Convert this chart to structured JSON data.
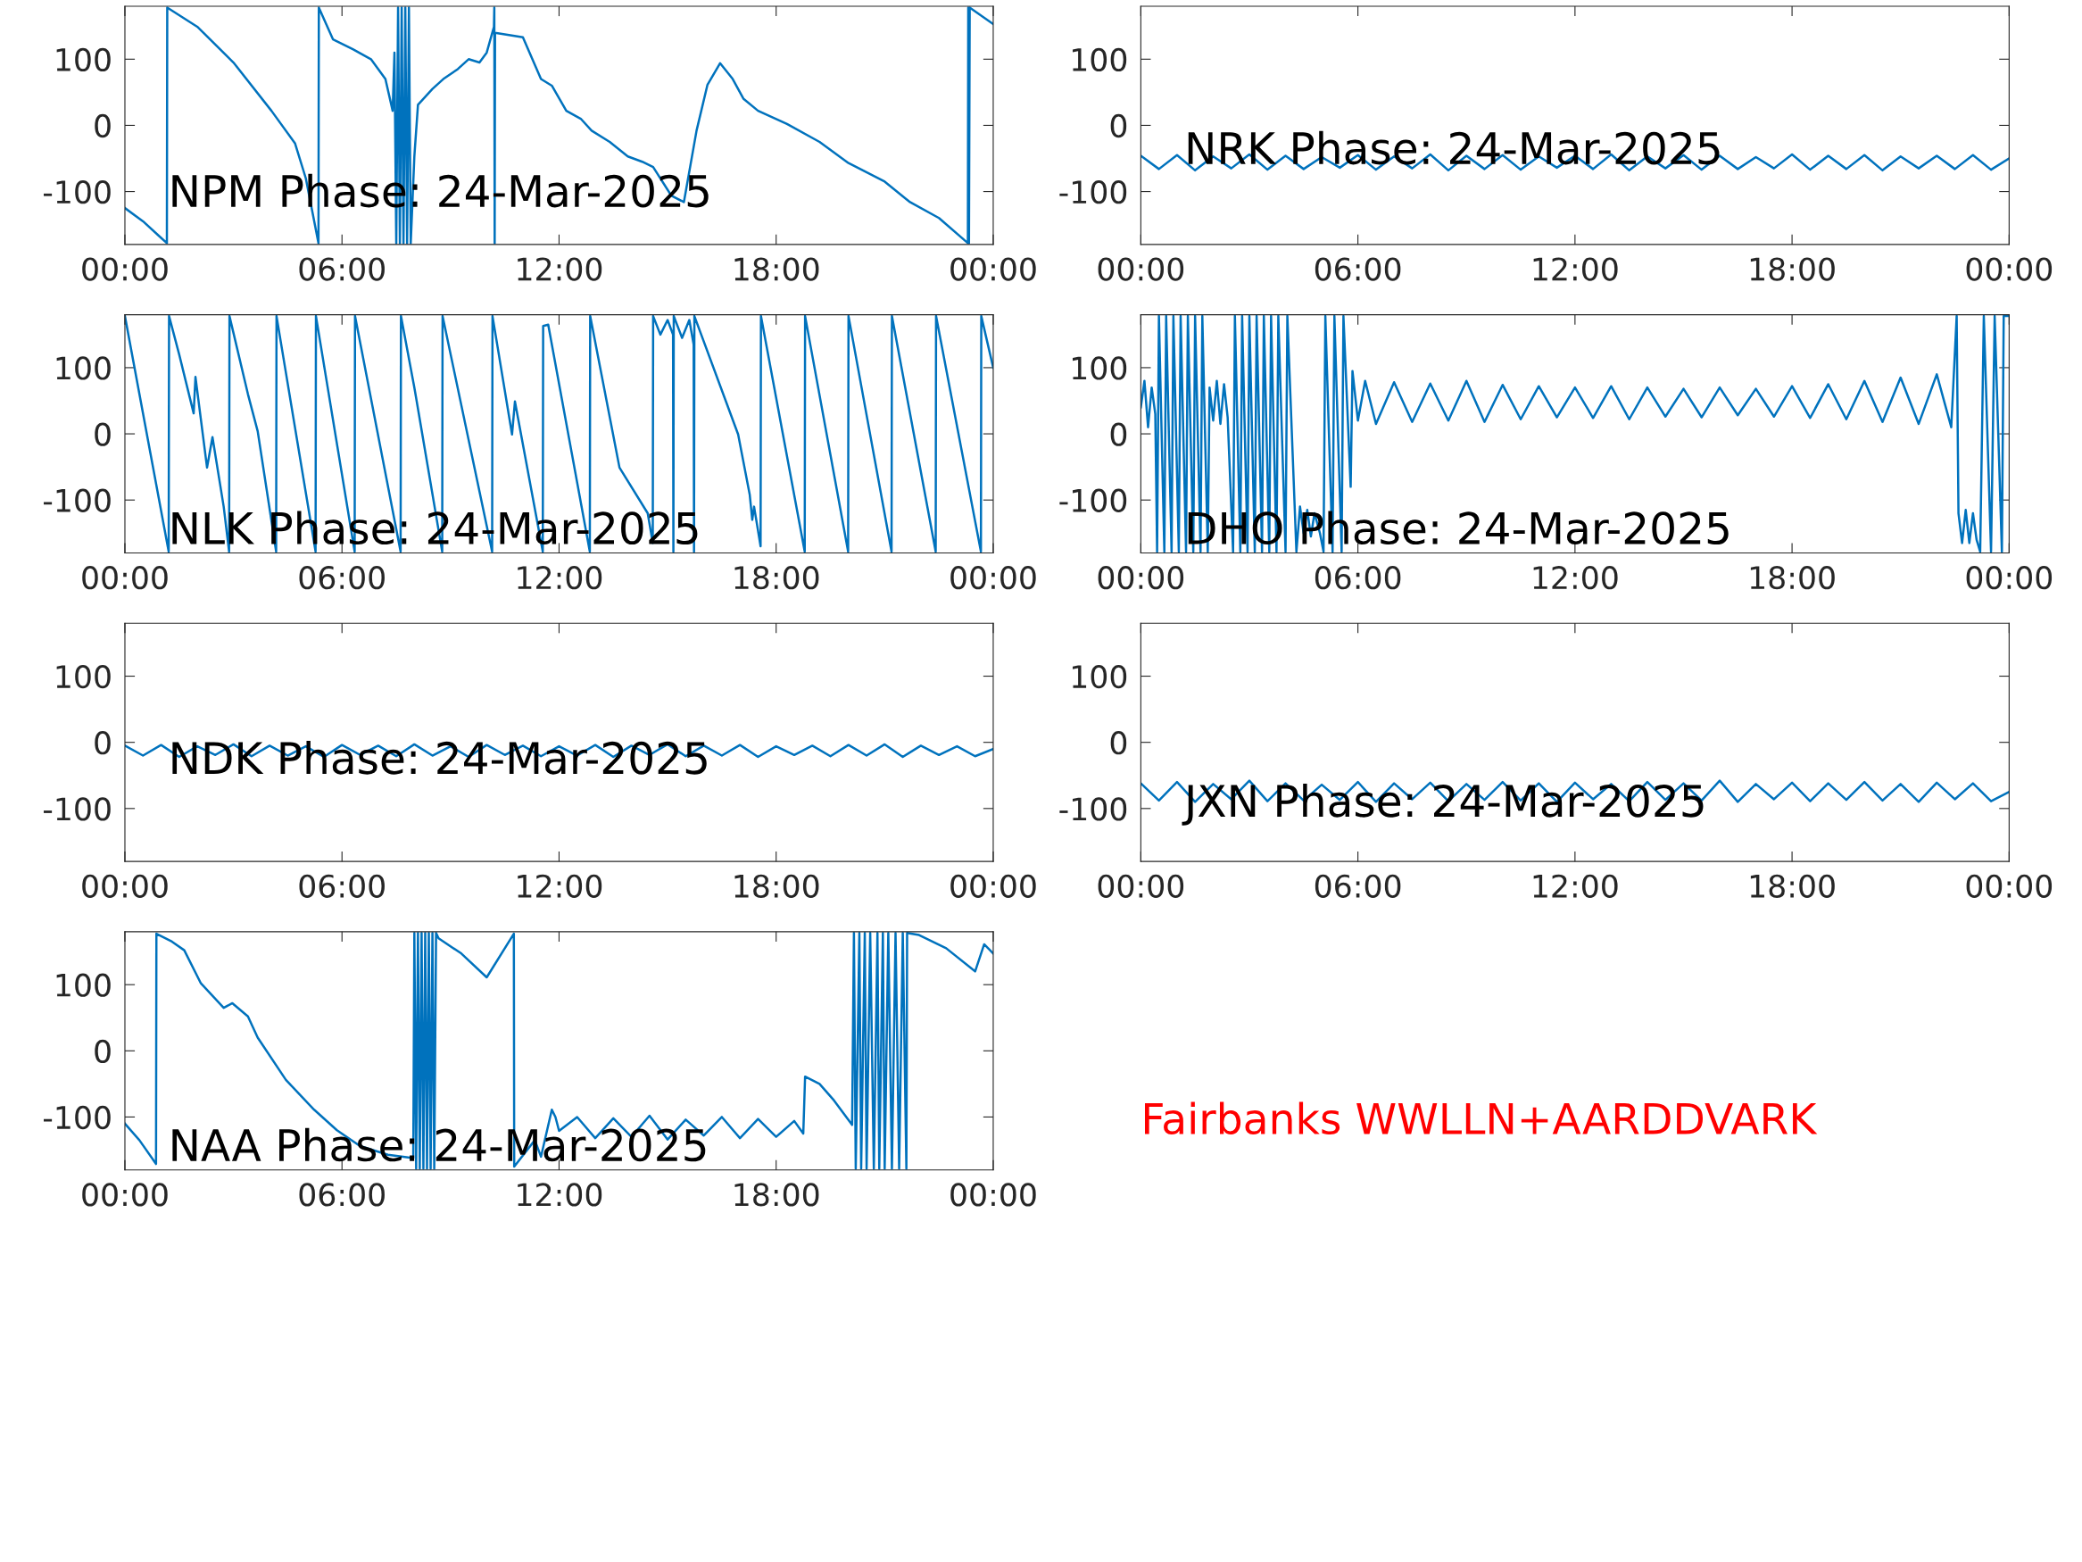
{
  "chart_data": [
    {
      "type": "line",
      "annotations": [
        "NPM Phase: 24-Mar-2025"
      ],
      "xlim": [
        0,
        24
      ],
      "ylim": [
        -180,
        180
      ],
      "xticks": [
        {
          "value": 0,
          "label": "00:00"
        },
        {
          "value": 6,
          "label": "06:00"
        },
        {
          "value": 12,
          "label": "12:00"
        },
        {
          "value": 18,
          "label": "18:00"
        },
        {
          "value": 24,
          "label": "00:00"
        }
      ],
      "yticks": [
        -100,
        0,
        100
      ],
      "grid": false,
      "series": [
        {
          "color": "#0072bd",
          "x": [
            0,
            0.5,
            1.0,
            1.16,
            1.17,
            2.0,
            3.0,
            4.05,
            4.7,
            5.0,
            5.35,
            5.36,
            5.75,
            6.3,
            6.8,
            7.2,
            7.4,
            7.45,
            7.5,
            7.55,
            7.6,
            7.65,
            7.7,
            7.75,
            7.8,
            7.85,
            7.9,
            8.0,
            8.1,
            8.5,
            8.8,
            9.2,
            9.5,
            9.8,
            10.0,
            10.2,
            10.21,
            10.22,
            10.23,
            11.0,
            11.5,
            11.8,
            12.2,
            12.6,
            12.9,
            13.4,
            13.9,
            14.3,
            14.6,
            15.1,
            15.45,
            15.8,
            16.1,
            16.45,
            16.8,
            17.1,
            17.5,
            18.3,
            19.2,
            20.0,
            21.0,
            21.7,
            22.5,
            23.3,
            23.31,
            23.33,
            23.35,
            24.0
          ],
          "values": [
            -125,
            -145,
            -170,
            -178,
            178,
            149,
            95,
            22,
            -27,
            -80,
            -178,
            178,
            130,
            115,
            100,
            70,
            22,
            110,
            -178,
            178,
            -178,
            178,
            -178,
            178,
            -178,
            178,
            -178,
            -47,
            31,
            55,
            70,
            85,
            100,
            95,
            110,
            149,
            178,
            -178,
            140,
            133,
            70,
            60,
            22,
            10,
            -8,
            -25,
            -47,
            -55,
            -63,
            -106,
            -116,
            -8,
            61,
            94,
            70,
            40,
            22,
            2,
            -25,
            -57,
            -85,
            -116,
            -140,
            -178,
            178,
            -178,
            178,
            153
          ]
        }
      ]
    },
    {
      "type": "line",
      "annotations": [
        "NRK Phase: 24-Mar-2025"
      ],
      "xlim": [
        0,
        24
      ],
      "ylim": [
        -180,
        180
      ],
      "xticks": [
        {
          "value": 0,
          "label": "00:00"
        },
        {
          "value": 6,
          "label": "06:00"
        },
        {
          "value": 12,
          "label": "12:00"
        },
        {
          "value": 18,
          "label": "18:00"
        },
        {
          "value": 24,
          "label": "00:00"
        }
      ],
      "yticks": [
        -100,
        0,
        100
      ],
      "grid": false,
      "series": [
        {
          "color": "#0072bd",
          "x": [
            0,
            0.5,
            1,
            1.5,
            2,
            2.5,
            3,
            3.5,
            4,
            4.5,
            5,
            5.5,
            6,
            6.5,
            7,
            7.5,
            8,
            8.5,
            9,
            9.5,
            10,
            10.5,
            11,
            11.5,
            12,
            12.5,
            13,
            13.5,
            14,
            14.5,
            15,
            15.5,
            16,
            16.5,
            17,
            17.5,
            18,
            18.5,
            19,
            19.5,
            20,
            20.5,
            21,
            21.5,
            22,
            22.5,
            23,
            23.5,
            24
          ],
          "values": [
            -46,
            -66,
            -45,
            -68,
            -47,
            -65,
            -44,
            -67,
            -46,
            -66,
            -48,
            -64,
            -45,
            -67,
            -47,
            -65,
            -44,
            -68,
            -46,
            -66,
            -45,
            -67,
            -47,
            -64,
            -46,
            -66,
            -44,
            -68,
            -47,
            -65,
            -45,
            -67,
            -46,
            -66,
            -48,
            -65,
            -44,
            -67,
            -46,
            -66,
            -45,
            -68,
            -47,
            -65,
            -46,
            -66,
            -45,
            -67,
            -50
          ]
        }
      ]
    },
    {
      "type": "line",
      "annotations": [
        "NLK Phase: 24-Mar-2025"
      ],
      "xlim": [
        0,
        24
      ],
      "ylim": [
        -180,
        180
      ],
      "xticks": [
        {
          "value": 0,
          "label": "00:00"
        },
        {
          "value": 6,
          "label": "06:00"
        },
        {
          "value": 12,
          "label": "12:00"
        },
        {
          "value": 18,
          "label": "18:00"
        },
        {
          "value": 24,
          "label": "00:00"
        }
      ],
      "yticks": [
        -100,
        0,
        100
      ],
      "grid": false,
      "series": [
        {
          "color": "#0072bd",
          "x": [
            0,
            1.21,
            1.22,
            1.5,
            1.9,
            1.95,
            2.27,
            2.42,
            2.73,
            2.88,
            2.89,
            3.4,
            3.67,
            4.18,
            4.19,
            5.27,
            5.28,
            6.35,
            6.36,
            7.62,
            7.63,
            8.0,
            8.05,
            8.77,
            8.78,
            10.15,
            10.16,
            10.7,
            10.78,
            11.55,
            11.56,
            11.7,
            12.85,
            12.86,
            13.67,
            14.45,
            14.59,
            14.6,
            14.8,
            15.0,
            15.15,
            15.16,
            15.17,
            15.4,
            15.6,
            15.72,
            15.73,
            15.74,
            16.64,
            16.95,
            17.27,
            17.34,
            17.39,
            17.57,
            17.58,
            18.79,
            18.8,
            19.99,
            20.0,
            21.19,
            21.2,
            22.41,
            22.42,
            23.66,
            23.67,
            24.0
          ],
          "values": [
            178,
            -178,
            178,
            120,
            31,
            86,
            -51,
            -5,
            -110,
            -178,
            178,
            60,
            4,
            -178,
            178,
            -178,
            178,
            -178,
            178,
            -178,
            178,
            70,
            54,
            -178,
            178,
            -178,
            178,
            -1,
            49,
            -178,
            163,
            165,
            -178,
            178,
            -51,
            -120,
            -165,
            178,
            150,
            172,
            150,
            -178,
            178,
            145,
            172,
            135,
            -178,
            178,
            45,
            -1,
            -92,
            -130,
            -110,
            -170,
            178,
            -178,
            178,
            -178,
            178,
            -178,
            178,
            -178,
            178,
            -178,
            178,
            100
          ]
        }
      ]
    },
    {
      "type": "line",
      "annotations": [
        "DHO Phase: 24-Mar-2025"
      ],
      "xlim": [
        0,
        24
      ],
      "ylim": [
        -180,
        180
      ],
      "xticks": [
        {
          "value": 0,
          "label": "00:00"
        },
        {
          "value": 6,
          "label": "06:00"
        },
        {
          "value": 12,
          "label": "12:00"
        },
        {
          "value": 18,
          "label": "18:00"
        },
        {
          "value": 24,
          "label": "00:00"
        }
      ],
      "yticks": [
        -100,
        0,
        100
      ],
      "grid": false,
      "series": [
        {
          "color": "#0072bd",
          "x": [
            0,
            0.1,
            0.2,
            0.3,
            0.4,
            0.45,
            0.5,
            0.65,
            0.7,
            0.85,
            0.9,
            1.05,
            1.1,
            1.25,
            1.3,
            1.45,
            1.5,
            1.65,
            1.7,
            1.85,
            1.9,
            2.0,
            2.1,
            2.2,
            2.3,
            2.4,
            2.55,
            2.6,
            2.75,
            2.8,
            2.95,
            3.0,
            3.15,
            3.2,
            3.35,
            3.4,
            3.55,
            3.6,
            3.75,
            3.8,
            4.0,
            4.05,
            4.3,
            4.4,
            4.5,
            4.6,
            4.7,
            4.8,
            4.95,
            5.05,
            5.1,
            5.3,
            5.35,
            5.55,
            5.6,
            5.8,
            5.85,
            6.0,
            6.2,
            6.5,
            7.0,
            7.5,
            8.0,
            8.5,
            9.0,
            9.5,
            10.0,
            10.5,
            11.0,
            11.5,
            12.0,
            12.5,
            13.0,
            13.5,
            14.0,
            14.5,
            15.0,
            15.5,
            16.0,
            16.5,
            17.0,
            17.5,
            18.0,
            18.5,
            19.0,
            19.5,
            20.0,
            20.5,
            21.0,
            21.5,
            22.0,
            22.4,
            22.55,
            22.6,
            22.7,
            22.8,
            22.9,
            23.0,
            23.1,
            23.2,
            23.3,
            23.5,
            23.6,
            23.8,
            23.85,
            24.0
          ],
          "values": [
            40,
            80,
            10,
            70,
            30,
            -178,
            178,
            -178,
            178,
            -178,
            178,
            -178,
            178,
            -178,
            178,
            -178,
            178,
            -178,
            178,
            -178,
            70,
            20,
            80,
            15,
            75,
            25,
            -178,
            178,
            -178,
            178,
            -178,
            178,
            -178,
            178,
            -178,
            178,
            -178,
            178,
            -178,
            178,
            -178,
            178,
            -178,
            -110,
            -150,
            -115,
            -155,
            -120,
            -150,
            -178,
            178,
            -178,
            178,
            -178,
            178,
            -80,
            95,
            20,
            80,
            15,
            78,
            18,
            76,
            20,
            80,
            18,
            74,
            22,
            72,
            25,
            70,
            24,
            72,
            22,
            70,
            26,
            68,
            25,
            70,
            28,
            68,
            26,
            72,
            24,
            75,
            22,
            80,
            18,
            85,
            15,
            90,
            10,
            178,
            -120,
            -165,
            -115,
            -165,
            -120,
            -160,
            -178,
            178,
            -178,
            178,
            -178,
            178,
            178
          ]
        }
      ]
    },
    {
      "type": "line",
      "annotations": [
        "NDK Phase: 24-Mar-2025"
      ],
      "xlim": [
        0,
        24
      ],
      "ylim": [
        -180,
        180
      ],
      "xticks": [
        {
          "value": 0,
          "label": "00:00"
        },
        {
          "value": 6,
          "label": "06:00"
        },
        {
          "value": 12,
          "label": "12:00"
        },
        {
          "value": 18,
          "label": "18:00"
        },
        {
          "value": 24,
          "label": "00:00"
        }
      ],
      "yticks": [
        -100,
        0,
        100
      ],
      "grid": false,
      "series": [
        {
          "color": "#0072bd",
          "x": [
            0,
            0.5,
            1,
            1.5,
            2,
            2.5,
            3,
            3.5,
            4,
            4.5,
            5,
            5.5,
            6,
            6.5,
            7,
            7.5,
            8,
            8.5,
            9,
            9.5,
            10,
            10.5,
            11,
            11.5,
            12,
            12.5,
            13,
            13.5,
            14,
            14.5,
            15,
            15.5,
            16,
            16.5,
            17,
            17.5,
            18,
            18.5,
            19,
            19.5,
            20,
            20.5,
            21,
            21.5,
            22,
            22.5,
            23,
            23.5,
            24
          ],
          "values": [
            -5,
            -20,
            -4,
            -22,
            -6,
            -19,
            -3,
            -21,
            -5,
            -20,
            -6,
            -22,
            -4,
            -19,
            -5,
            -21,
            -3,
            -20,
            -6,
            -22,
            -4,
            -19,
            -5,
            -21,
            -6,
            -20,
            -4,
            -22,
            -5,
            -19,
            -3,
            -21,
            -5,
            -20,
            -4,
            -22,
            -6,
            -19,
            -5,
            -21,
            -4,
            -20,
            -3,
            -22,
            -5,
            -19,
            -6,
            -21,
            -10
          ]
        }
      ]
    },
    {
      "type": "line",
      "annotations": [
        "JXN Phase: 24-Mar-2025"
      ],
      "xlim": [
        0,
        24
      ],
      "ylim": [
        -180,
        180
      ],
      "xticks": [
        {
          "value": 0,
          "label": "00:00"
        },
        {
          "value": 6,
          "label": "06:00"
        },
        {
          "value": 12,
          "label": "12:00"
        },
        {
          "value": 18,
          "label": "18:00"
        },
        {
          "value": 24,
          "label": "00:00"
        }
      ],
      "yticks": [
        -100,
        0,
        100
      ],
      "grid": false,
      "series": [
        {
          "color": "#0072bd",
          "x": [
            0,
            0.5,
            1,
            1.5,
            2,
            2.5,
            3,
            3.5,
            4,
            4.5,
            5,
            5.5,
            6,
            6.5,
            7,
            7.5,
            8,
            8.5,
            9,
            9.5,
            10,
            10.5,
            11,
            11.5,
            12,
            12.5,
            13,
            13.5,
            14,
            14.5,
            15,
            15.5,
            16,
            16.5,
            17,
            17.5,
            18,
            18.5,
            19,
            19.5,
            20,
            20.5,
            21,
            21.5,
            22,
            22.5,
            23,
            23.5,
            24
          ],
          "values": [
            -62,
            -88,
            -60,
            -90,
            -63,
            -86,
            -58,
            -89,
            -62,
            -88,
            -64,
            -87,
            -60,
            -90,
            -62,
            -86,
            -61,
            -89,
            -63,
            -87,
            -60,
            -88,
            -62,
            -90,
            -61,
            -86,
            -63,
            -89,
            -60,
            -87,
            -62,
            -88,
            -58,
            -90,
            -63,
            -86,
            -61,
            -89,
            -62,
            -87,
            -60,
            -88,
            -63,
            -90,
            -61,
            -86,
            -62,
            -89,
            -75
          ]
        }
      ]
    },
    {
      "type": "line",
      "annotations": [
        "NAA Phase: 24-Mar-2025"
      ],
      "xlim": [
        0,
        24
      ],
      "ylim": [
        -180,
        180
      ],
      "xticks": [
        {
          "value": 0,
          "label": "00:00"
        },
        {
          "value": 6,
          "label": "06:00"
        },
        {
          "value": 12,
          "label": "12:00"
        },
        {
          "value": 18,
          "label": "18:00"
        },
        {
          "value": 24,
          "label": "00:00"
        }
      ],
      "yticks": [
        -100,
        0,
        100
      ],
      "grid": false,
      "series": [
        {
          "color": "#0072bd",
          "x": [
            0,
            0.4,
            0.86,
            0.87,
            1.3,
            1.64,
            2.1,
            2.73,
            2.97,
            3.4,
            3.67,
            4.45,
            5.23,
            5.86,
            6.5,
            7.27,
            7.97,
            8.0,
            8.05,
            8.1,
            8.15,
            8.2,
            8.25,
            8.3,
            8.35,
            8.4,
            8.45,
            8.5,
            8.55,
            8.6,
            8.67,
            9.3,
            10.0,
            10.75,
            10.76,
            11.33,
            11.5,
            11.8,
            11.9,
            12.0,
            12.5,
            13.0,
            13.5,
            14.0,
            14.5,
            15.0,
            15.5,
            16.0,
            16.5,
            17.0,
            17.5,
            18.0,
            18.5,
            18.75,
            18.8,
            19.2,
            19.6,
            20.1,
            20.15,
            20.2,
            20.3,
            20.35,
            20.45,
            20.5,
            20.6,
            20.7,
            20.8,
            20.85,
            20.95,
            21.0,
            21.1,
            21.2,
            21.3,
            21.4,
            21.5,
            21.6,
            21.62,
            21.95,
            22.7,
            23.5,
            23.75,
            24.0
          ],
          "values": [
            -110,
            -135,
            -171,
            177,
            165,
            152,
            102,
            65,
            72,
            52,
            20,
            -44,
            -89,
            -120,
            -144,
            -157,
            -162,
            178,
            -178,
            178,
            -178,
            178,
            -178,
            178,
            -178,
            178,
            -178,
            178,
            -178,
            178,
            170,
            147,
            111,
            177,
            -175,
            -135,
            -160,
            -89,
            -100,
            -121,
            -100,
            -132,
            -102,
            -130,
            -98,
            -134,
            -104,
            -128,
            -100,
            -132,
            -103,
            -130,
            -106,
            -125,
            -39,
            -50,
            -75,
            -112,
            178,
            -178,
            178,
            -178,
            178,
            -178,
            178,
            -178,
            178,
            -178,
            178,
            -178,
            178,
            -178,
            178,
            -178,
            178,
            -178,
            178,
            175,
            155,
            120,
            161,
            147
          ]
        }
      ]
    },
    {
      "type": "other",
      "annotations": [
        "Fairbanks WWLLN+AARDDVARK"
      ]
    }
  ]
}
